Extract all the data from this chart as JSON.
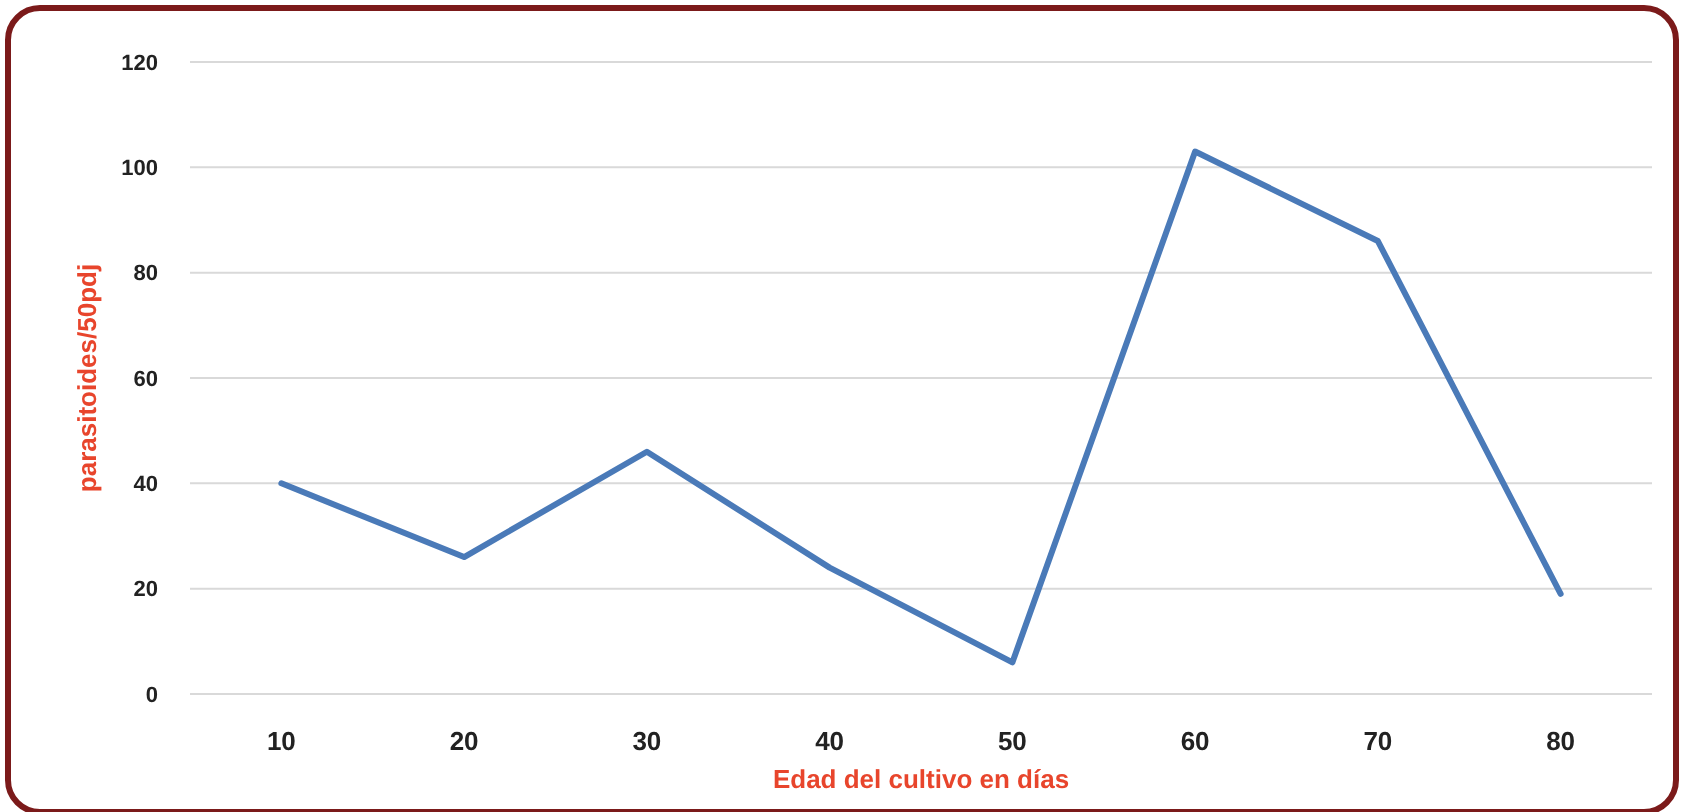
{
  "chart_data": {
    "type": "line",
    "xlabel": "Edad del cultivo en días",
    "ylabel": "parasitoides/50pdj",
    "categories": [
      "10",
      "20",
      "30",
      "40",
      "50",
      "60",
      "70",
      "80"
    ],
    "series": [
      {
        "color": "#4a7ab8",
        "values": [
          40,
          26,
          46,
          24,
          6,
          103,
          86,
          19
        ]
      }
    ],
    "ylim": [
      0,
      120
    ],
    "yticks": [
      0,
      20,
      40,
      60,
      80,
      100,
      120
    ],
    "grid": "y",
    "marker": "none",
    "line_style": "solid"
  }
}
